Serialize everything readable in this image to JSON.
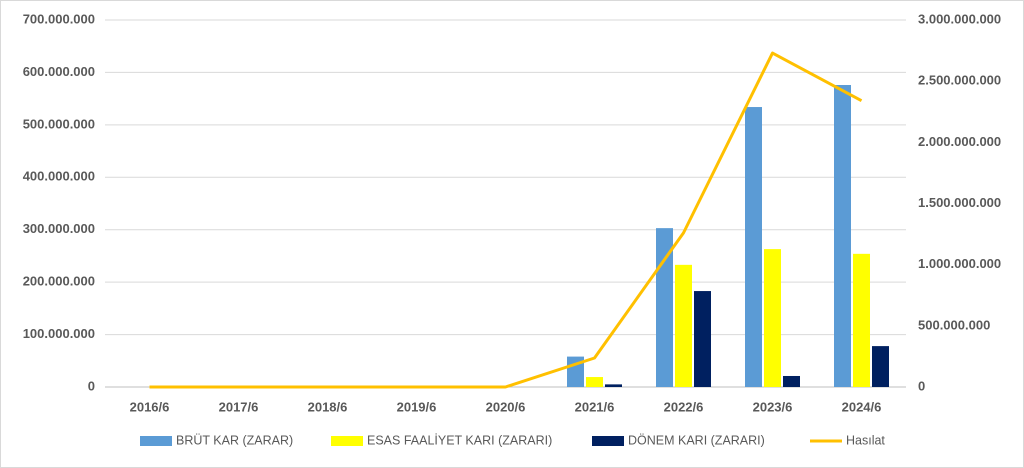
{
  "chart_data": {
    "type": "bar-line",
    "categories": [
      "2016/6",
      "2017/6",
      "2018/6",
      "2019/6",
      "2020/6",
      "2021/6",
      "2022/6",
      "2023/6",
      "2024/6"
    ],
    "series": [
      {
        "name": "BRÜT KAR (ZARAR)",
        "color": "#5b9bd5",
        "type": "bar",
        "values": [
          0,
          0,
          0,
          0,
          0,
          58000000,
          303000000,
          534000000,
          576000000
        ]
      },
      {
        "name": "ESAS FAALİYET KARI (ZARARI)",
        "color": "#ffff00",
        "type": "bar",
        "values": [
          0,
          0,
          0,
          0,
          0,
          19000000,
          233000000,
          263000000,
          254000000
        ]
      },
      {
        "name": "DÖNEM KARI (ZARARI)",
        "color": "#002060",
        "type": "bar",
        "values": [
          0,
          0,
          0,
          0,
          0,
          5000000,
          183000000,
          21000000,
          78000000
        ]
      },
      {
        "name": "Hasılat",
        "color": "#ffc000",
        "type": "line",
        "axis": "y2",
        "values": [
          0,
          0,
          0,
          0,
          0,
          237000000,
          1260000000,
          2730000000,
          2340000000
        ]
      }
    ],
    "ylim": [
      0,
      700000000
    ],
    "yticks": [
      0,
      {
        "value": 100000000,
        "label": "100.000.000"
      },
      {
        "value": 200000000,
        "label": "200.000.000"
      },
      {
        "value": 300000000,
        "label": "300.000.000"
      },
      {
        "value": 400000000,
        "label": "400.000.000"
      },
      {
        "value": 500000000,
        "label": "500.000.000"
      },
      {
        "value": 600000000,
        "label": "600.000.000"
      },
      {
        "value": 700000000,
        "label": "700.000.000"
      }
    ],
    "y2lim": [
      0,
      3000000000
    ],
    "y2ticks": [
      0,
      {
        "value": 500000000,
        "label": "500.000.000"
      },
      {
        "value": 1000000000,
        "label": "1.000.000.000"
      },
      {
        "value": 1500000000,
        "label": "1.500.000.000"
      },
      {
        "value": 2000000000,
        "label": "2.000.000.000"
      },
      {
        "value": 2500000000,
        "label": "2.500.000.000"
      },
      {
        "value": 3000000000,
        "label": "3.000.000.000"
      }
    ],
    "grid": true,
    "legend": "bottom"
  }
}
